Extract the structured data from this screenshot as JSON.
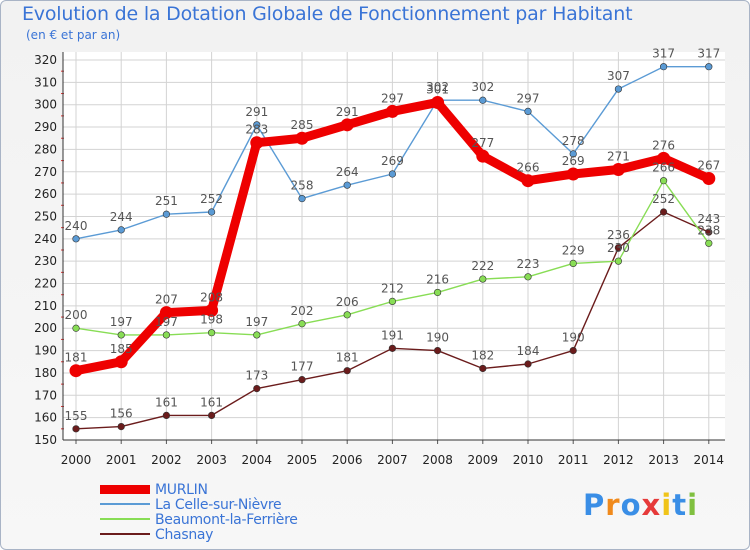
{
  "chart_data": {
    "type": "line",
    "title": "Evolution de la Dotation Globale de Fonctionnement par Habitant",
    "subtitle": "(en € et par an)",
    "x": [
      "2000",
      "2001",
      "2002",
      "2003",
      "2004",
      "2005",
      "2006",
      "2007",
      "2008",
      "2009",
      "2010",
      "2011",
      "2012",
      "2013",
      "2014"
    ],
    "ylim": [
      150,
      320
    ],
    "yticks": [
      150,
      160,
      170,
      180,
      190,
      200,
      210,
      220,
      230,
      240,
      250,
      260,
      270,
      280,
      290,
      300,
      310,
      320
    ],
    "grid": true,
    "series": [
      {
        "name": "MURLIN",
        "color": "#ee0000",
        "values": [
          181,
          185,
          207,
          208,
          283,
          285,
          291,
          297,
          301,
          277,
          266,
          269,
          271,
          276,
          267
        ]
      },
      {
        "name": "La Celle-sur-Nièvre",
        "color": "#5b9bd5",
        "values": [
          240,
          244,
          251,
          252,
          291,
          258,
          264,
          269,
          302,
          302,
          297,
          278,
          307,
          317,
          317
        ]
      },
      {
        "name": "Beaumont-la-Ferrière",
        "color": "#88dd55",
        "values": [
          200,
          197,
          197,
          198,
          197,
          202,
          206,
          212,
          216,
          222,
          223,
          229,
          230,
          266,
          238
        ]
      },
      {
        "name": "Chasnay",
        "color": "#6b1c1c",
        "values": [
          155,
          156,
          161,
          161,
          173,
          177,
          181,
          191,
          190,
          182,
          184,
          190,
          236,
          252,
          243
        ]
      }
    ]
  },
  "logo": {
    "text": "Proxiti"
  }
}
